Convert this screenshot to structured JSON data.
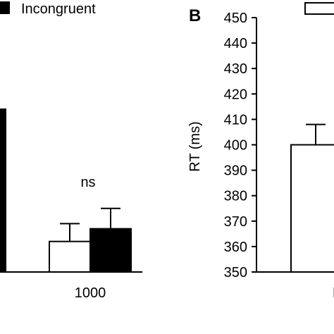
{
  "chart_data": [
    {
      "type": "bar",
      "panel": "",
      "categories": [
        "",
        "1000"
      ],
      "series": [
        {
          "name": "",
          "color": "#ffffff",
          "values": [
            null,
            362
          ]
        },
        {
          "name": "Incongruent",
          "color": "#000000",
          "values": [
            414,
            367
          ]
        }
      ],
      "errors": {
        "congruent": [
          null,
          7
        ],
        "incongruent": [
          null,
          8
        ]
      },
      "annotations": [
        {
          "text": "ns",
          "category": "1000"
        }
      ],
      "xlabel": "",
      "ylabel": "",
      "ylim": [
        350,
        450
      ]
    },
    {
      "type": "bar",
      "panel": "B",
      "categories": [
        "N"
      ],
      "series": [
        {
          "name": "",
          "color": "#ffffff",
          "values": [
            400
          ]
        }
      ],
      "errors": {
        "first": [
          8
        ]
      },
      "ylabel": "RT (ms)",
      "ylim": [
        350,
        450
      ],
      "yticks": [
        350,
        360,
        370,
        380,
        390,
        400,
        410,
        420,
        430,
        440,
        450
      ]
    }
  ]
}
